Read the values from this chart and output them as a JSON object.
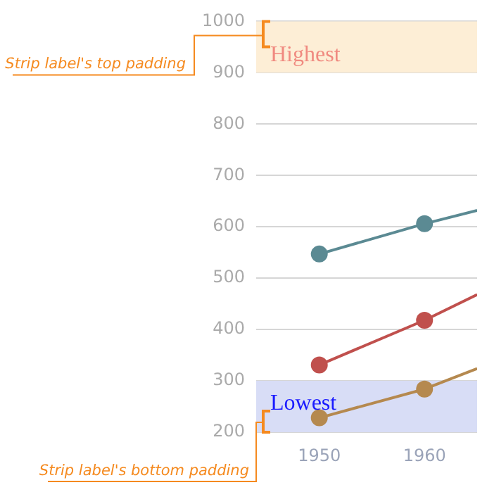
{
  "chart_data": {
    "type": "line",
    "x": [
      1950,
      1960,
      1965
    ],
    "series": [
      {
        "color": "#5b8a93",
        "values": [
          547,
          606,
          632
        ]
      },
      {
        "color": "#c0504d",
        "values": [
          331,
          418,
          468
        ]
      },
      {
        "color": "#b5894f",
        "values": [
          228,
          284,
          324
        ]
      }
    ],
    "xlim": [
      1944,
      1965
    ],
    "xticks": [
      1950,
      1960
    ],
    "ylim": [
      200,
      1000
    ],
    "yticks": [
      200,
      300,
      400,
      500,
      600,
      700,
      800,
      900,
      1000
    ],
    "grid": "y",
    "legend": false,
    "marker": "circle",
    "line_style": "solid",
    "bands": [
      {
        "axis": "y",
        "from": 900,
        "to": 1000,
        "label": "Highest",
        "color": "#fdeed6"
      },
      {
        "axis": "y",
        "from": 200,
        "to": 300,
        "label": "Lowest",
        "color": "#d8ddf6"
      }
    ],
    "annotations": [
      "Strip label's top padding",
      "Strip label's bottom padding"
    ]
  }
}
